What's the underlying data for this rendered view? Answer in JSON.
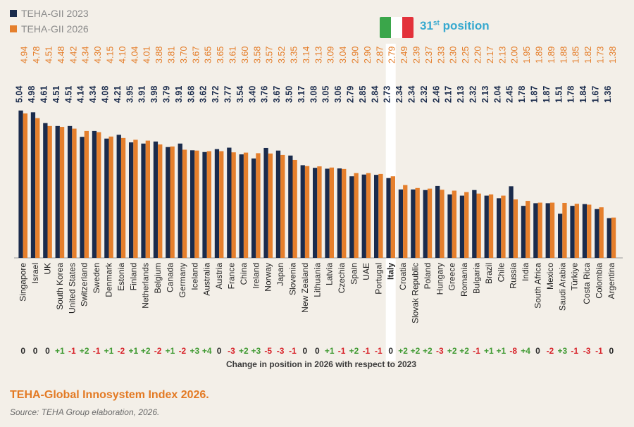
{
  "legend": {
    "series_2023": "TEHA-GII 2023",
    "series_2026": "TEHA-GII 2026"
  },
  "highlight": {
    "ordinal_number": "31",
    "ordinal_suffix": "st",
    "position_word": "position",
    "flag_colors": [
      "#3aa64a",
      "#ffffff",
      "#e3323b"
    ]
  },
  "footer": {
    "title": "TEHA-Global Innosystem Index 2026.",
    "source": "Source: TEHA Group elaboration, 2026."
  },
  "chart_data": {
    "type": "bar",
    "highlight_category": "Italy",
    "categories": [
      "Singapore",
      "Israel",
      "UK",
      "South Korea",
      "United States",
      "Switzerland",
      "Sweden",
      "Denmark",
      "Estonia",
      "Finland",
      "Netherlands",
      "Belgium",
      "Canada",
      "Germany",
      "Iceland",
      "Australia",
      "Austria",
      "France",
      "China",
      "Ireland",
      "Norway",
      "Japan",
      "Slovenia",
      "New Zealand",
      "Lithuania",
      "Latvia",
      "Czechia",
      "Spain",
      "UAE",
      "Portugal",
      "Italy",
      "Croatia",
      "Slovak Republic",
      "Poland",
      "Hungary",
      "Greece",
      "Romania",
      "Bulgaria",
      "Brazil",
      "Chile",
      "Russia",
      "India",
      "South Africa",
      "Mexico",
      "Saudi Arabia",
      "Türkiye",
      "Costa Rica",
      "Colombia",
      "Argentina"
    ],
    "series": [
      {
        "name": "TEHA-GII 2023",
        "color": "#1a2b4c",
        "values": [
          5.04,
          4.98,
          4.61,
          4.51,
          4.51,
          4.14,
          4.34,
          4.08,
          4.21,
          3.95,
          3.91,
          3.98,
          3.79,
          3.91,
          3.68,
          3.62,
          3.72,
          3.77,
          3.54,
          3.4,
          3.76,
          3.67,
          3.5,
          3.17,
          3.08,
          3.05,
          3.06,
          2.79,
          2.85,
          2.84,
          2.73,
          2.34,
          2.34,
          2.32,
          2.46,
          2.17,
          2.13,
          2.32,
          2.13,
          2.04,
          2.45,
          1.78,
          1.87,
          1.87,
          1.51,
          1.78,
          1.84,
          1.67,
          1.36
        ]
      },
      {
        "name": "TEHA-GII 2026",
        "color": "#e57f2c",
        "values": [
          4.94,
          4.78,
          4.51,
          4.48,
          4.42,
          4.34,
          4.3,
          4.15,
          4.1,
          4.04,
          4.01,
          3.88,
          3.81,
          3.7,
          3.67,
          3.65,
          3.65,
          3.61,
          3.6,
          3.58,
          3.57,
          3.52,
          3.35,
          3.14,
          3.13,
          3.09,
          3.04,
          2.9,
          2.9,
          2.87,
          2.79,
          2.49,
          2.39,
          2.37,
          2.33,
          2.3,
          2.25,
          2.2,
          2.17,
          2.13,
          2.0,
          1.95,
          1.89,
          1.89,
          1.88,
          1.85,
          1.82,
          1.73,
          1.38
        ]
      }
    ],
    "position_change": [
      "0",
      "0",
      "0",
      "+1",
      "-1",
      "+2",
      "-1",
      "+1",
      "-2",
      "+1",
      "+2",
      "-2",
      "+1",
      "-2",
      "+3",
      "+4",
      "0",
      "-3",
      "+2",
      "+3",
      "-5",
      "-3",
      "-1",
      "0",
      "0",
      "+1",
      "-1",
      "+2",
      "-1",
      "-1",
      "0",
      "+2",
      "+2",
      "+2",
      "-3",
      "+2",
      "+2",
      "-1",
      "+1",
      "+1",
      "-8",
      "+4",
      "0",
      "-2",
      "+3",
      "-1",
      "-3",
      "-1",
      "0"
    ],
    "change_colors": {
      "positive": "#3f9a32",
      "negative": "#d8232a",
      "zero": "#2b2b2b"
    },
    "xlabel": "Change in position in 2026 with respect to 2023",
    "ylim": [
      0,
      5.1
    ]
  }
}
